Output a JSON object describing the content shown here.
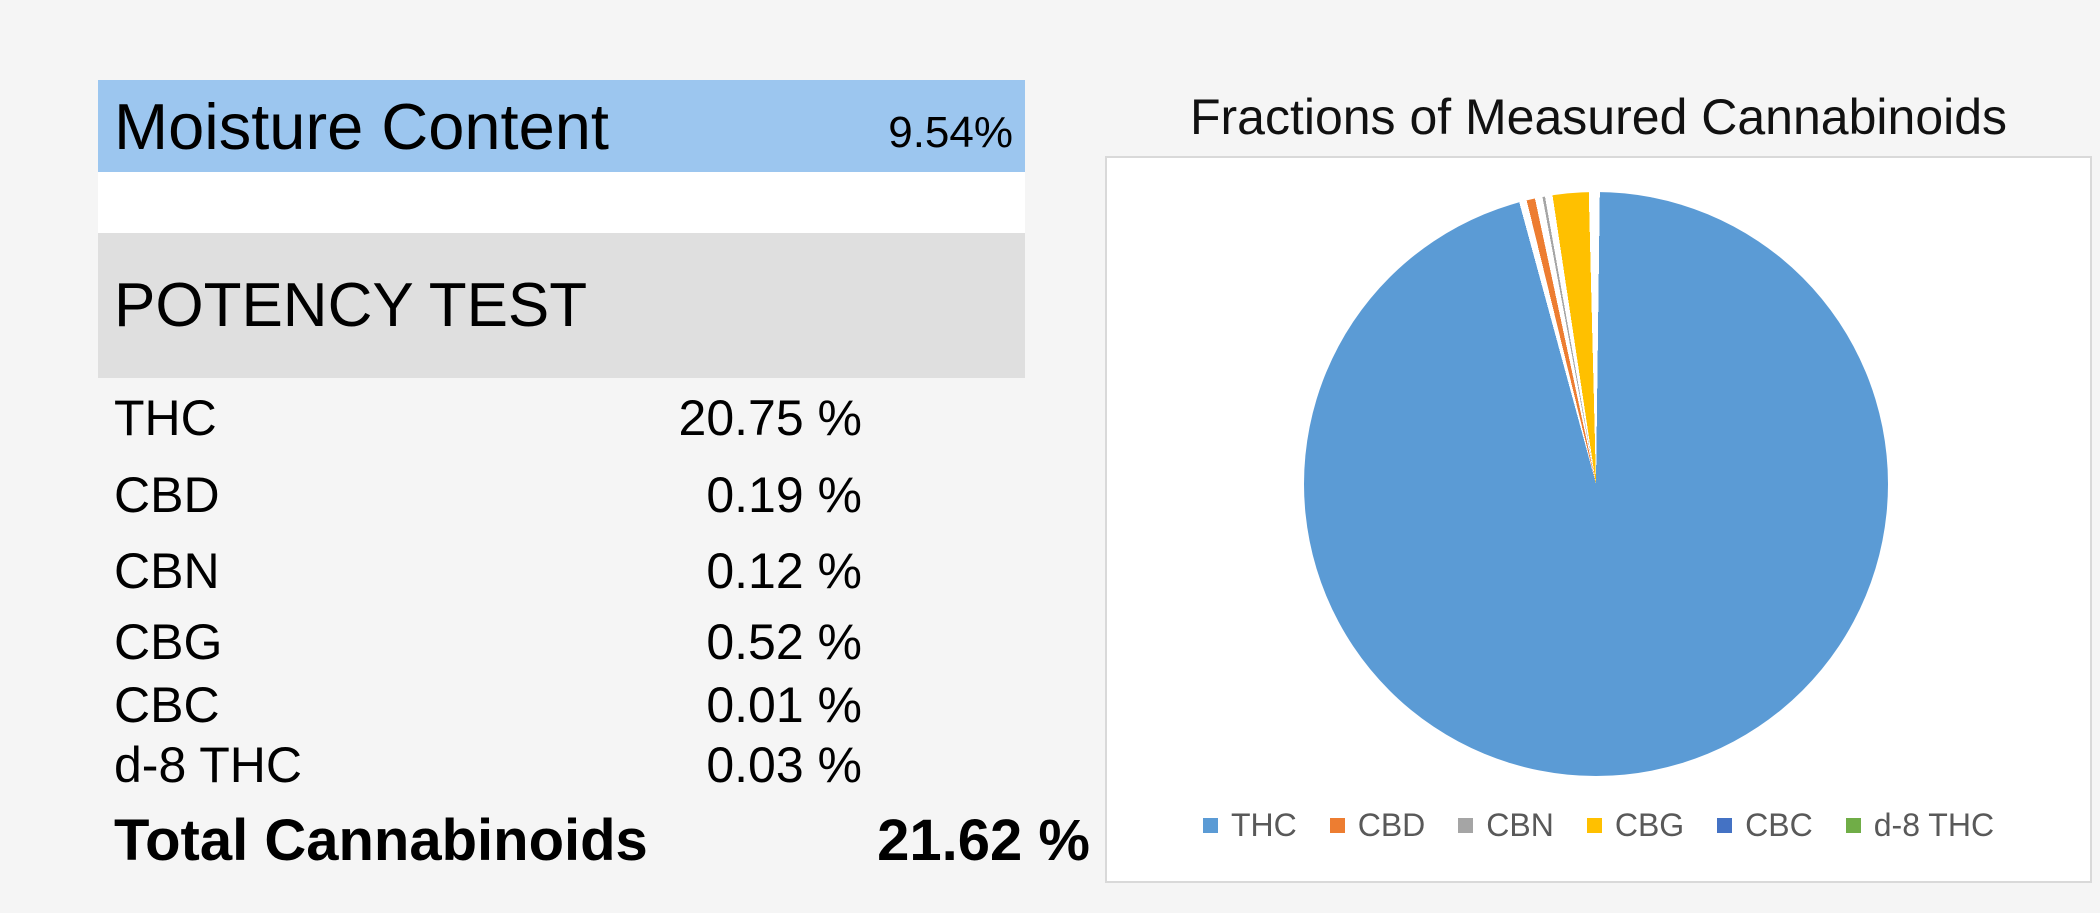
{
  "colors": {
    "page_bg": "#F5F5F5",
    "moisture_band_bg": "#9CC6EF",
    "potency_band_bg": "#DFDFDF",
    "spacer_bg": "#FFFFFF",
    "chart_panel_bg": "#FFFFFF",
    "chart_panel_border": "#D9D9D9",
    "legend_text": "#595959",
    "slice_separator": "#FFFFFF"
  },
  "moisture": {
    "label": "Moisture Content",
    "value": "9.54%"
  },
  "potency": {
    "header": "POTENCY TEST",
    "rows": [
      {
        "label": "THC",
        "value": "20.75 %"
      },
      {
        "label": "CBD",
        "value": "0.19 %"
      },
      {
        "label": "CBN",
        "value": "0.12 %"
      },
      {
        "label": "CBG",
        "value": "0.52 %"
      },
      {
        "label": "CBC",
        "value": "0.01 %"
      },
      {
        "label": "d-8 THC",
        "value": "0.03 %"
      }
    ],
    "total": {
      "label": "Total Cannabinoids",
      "value": "21.62 %"
    }
  },
  "chart_data": {
    "type": "pie",
    "title": "Fractions of Measured Cannabinoids",
    "categories": [
      "THC",
      "CBD",
      "CBN",
      "CBG",
      "CBC",
      "d-8 THC"
    ],
    "values": [
      20.75,
      0.19,
      0.12,
      0.52,
      0.01,
      0.03
    ],
    "unit": "%",
    "total": 21.62,
    "colors": [
      "#5B9BD5",
      "#ED7D31",
      "#A5A5A5",
      "#FFC000",
      "#4472C4",
      "#70AD47"
    ],
    "legend_position": "bottom",
    "start_angle_deg": 0,
    "direction": "clockwise",
    "separator_gap_deg": 0.75
  }
}
